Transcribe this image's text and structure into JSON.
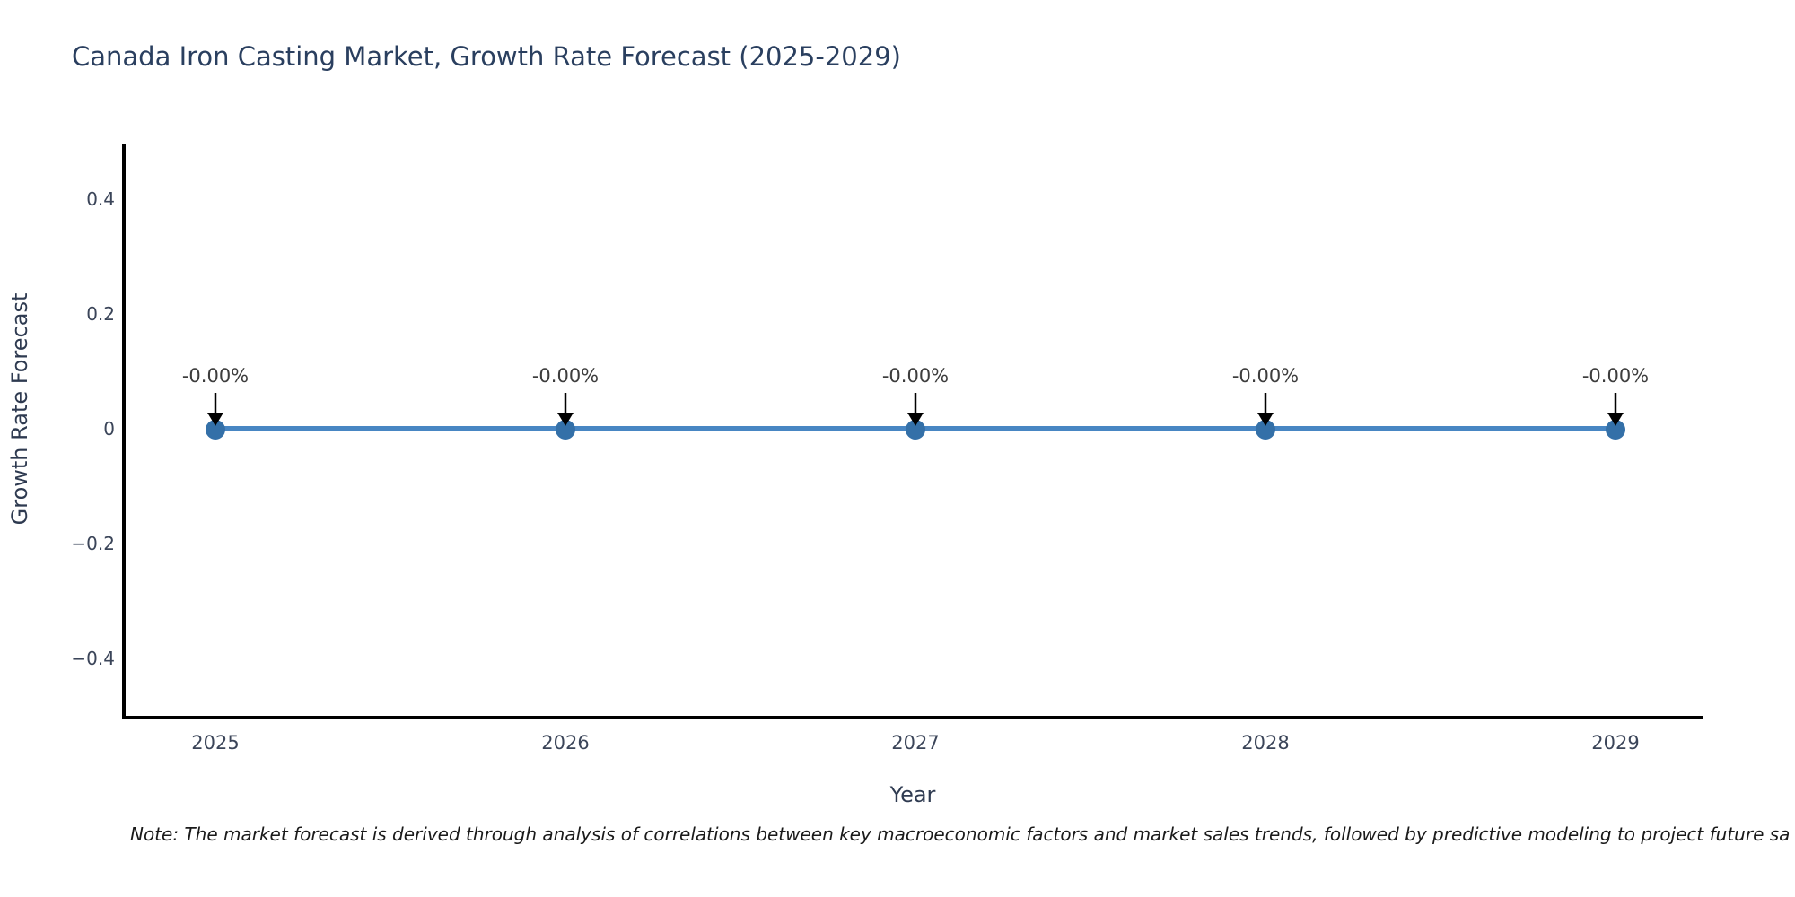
{
  "chart_data": {
    "type": "line",
    "title": "Canada Iron Casting Market, Growth Rate Forecast (2025-2029)",
    "xlabel": "Year",
    "ylabel": "Growth Rate Forecast",
    "x": [
      2025,
      2026,
      2027,
      2028,
      2029
    ],
    "series": [
      {
        "name": "Growth Rate Forecast",
        "values": [
          0,
          0,
          0,
          0,
          0
        ],
        "point_labels": [
          "-0.00%",
          "-0.00%",
          "-0.00%",
          "-0.00%",
          "-0.00%"
        ]
      }
    ],
    "ylim": [
      -0.5,
      0.5
    ],
    "yticks": {
      "values": [
        0.4,
        0.2,
        0,
        -0.2,
        -0.4
      ],
      "labels": [
        "0.4",
        "0.2",
        "0",
        "−0.2",
        "−0.4"
      ]
    },
    "xticks": {
      "values": [
        2025,
        2026,
        2027,
        2028,
        2029
      ],
      "labels": [
        "2025",
        "2026",
        "2027",
        "2028",
        "2029"
      ]
    },
    "grid": false,
    "legend": "none",
    "annotation_style": "down-arrow",
    "note": "Note: The market forecast is derived through analysis of correlations between key macroeconomic factors and market sales trends, followed by predictive modeling to project future sa",
    "colors": {
      "line": "#4886c3",
      "marker": "#3470a8",
      "arrow": "#000000",
      "axis": "#000000",
      "title": "#2a3f5f",
      "axis_label": "#2e3a50",
      "tick": "#3b4559",
      "annotation": "#3d3d3d",
      "note": "#1a1a1a",
      "background": "#ffffff"
    }
  }
}
